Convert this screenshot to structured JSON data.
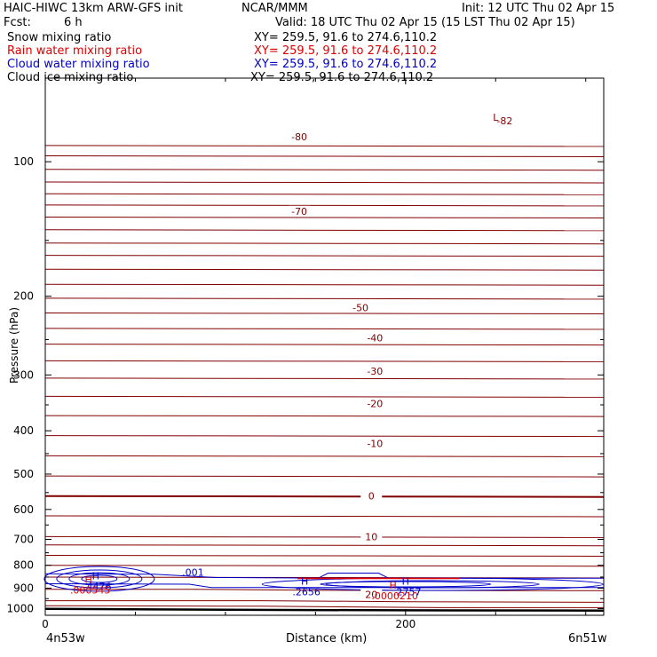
{
  "header": {
    "model": "HAIC-HIWC 13km ARW-GFS init",
    "org": "NCAR/MMM",
    "init": "Init: 12 UTC Thu 02 Apr 15",
    "fcst_label": "Fcst:",
    "fcst_value": "6 h",
    "valid": "Valid: 18 UTC Thu 02 Apr 15 (15 LST Thu 02 Apr 15)"
  },
  "fields": [
    {
      "name": "Snow mixing ratio",
      "xy": "XY= 259.5, 91.6 to 274.6,110.2",
      "color": "#000000"
    },
    {
      "name": "Rain water mixing ratio",
      "xy": "XY= 259.5, 91.6 to 274.6,110.2",
      "color": "#e00000"
    },
    {
      "name": "Cloud water mixing ratio",
      "xy": "XY= 259.5, 91.6 to 274.6,110.2",
      "color": "#0000c8"
    },
    {
      "name": "Cloud ice mixing ratio",
      "xy": "XY= 259.5, 91.6 to 274.6,110.2",
      "color": "#000000"
    }
  ],
  "chart_data": {
    "type": "cross-section contour",
    "xlabel": "Distance (km)",
    "ylabel": "Pressure (hPa)",
    "x_ticks": [
      0,
      200
    ],
    "y_ticks": [
      100,
      200,
      300,
      400,
      500,
      600,
      700,
      800,
      900,
      1000
    ],
    "xlim": [
      0,
      310
    ],
    "ylim": [
      1035,
      65
    ],
    "y_scale": "log",
    "endpoint_left": "4n53w",
    "endpoint_right": "6n51w",
    "colors": {
      "temperature": "#800000",
      "cloud_water": "#0000c8",
      "rain_water": "#e00000",
      "surface": "#000000"
    },
    "temperature_isotherms": [
      {
        "label": "-82",
        "p": 81
      },
      {
        "label": "-80",
        "p": 88
      },
      {
        "label": "-70",
        "p": 129
      },
      {
        "label": "-50",
        "p": 212
      },
      {
        "label": "-40",
        "p": 248
      },
      {
        "label": "-30",
        "p": 294
      },
      {
        "label": "-20",
        "p": 348
      },
      {
        "label": "-10",
        "p": 427
      },
      {
        "label": "0",
        "p": 560
      },
      {
        "label": "10",
        "p": 690
      },
      {
        "label": "20",
        "p": 930
      }
    ],
    "extrema_labels": [
      {
        "symbol": "L",
        "x": 250,
        "p": 81,
        "value": "",
        "series": "temperature"
      },
      {
        "symbol": "H",
        "x": 28,
        "p": 860,
        "value": "4476",
        "series": "cloud_water"
      },
      {
        "symbol": "H",
        "x": 144,
        "p": 883,
        "value": "2656",
        "series": "cloud_water"
      },
      {
        "symbol": "H",
        "x": 200,
        "p": 883,
        "value": "2757",
        "series": "cloud_water"
      },
      {
        "symbol": "H",
        "x": 24,
        "p": 876,
        "value": "000545",
        "series": "rain_water"
      },
      {
        "symbol": "H",
        "x": 193,
        "p": 902,
        "value": "0000210",
        "series": "rain_water"
      }
    ],
    "contour_labels": [
      {
        "label": ".001",
        "x": 82,
        "p": 845,
        "series": "cloud_water"
      }
    ]
  }
}
